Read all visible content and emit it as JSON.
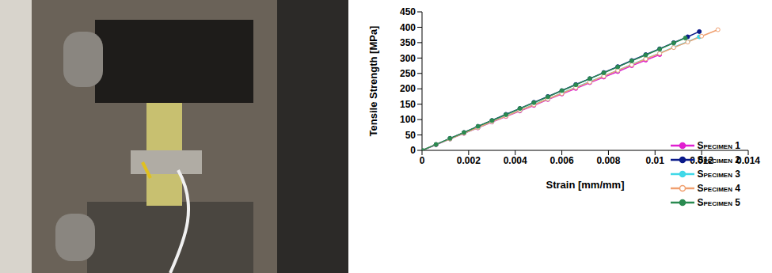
{
  "chart_data": {
    "type": "line",
    "x_label": "Strain [mm/mm]",
    "y_label": "Tensile Strength [MPa]",
    "xlim": [
      0,
      0.014
    ],
    "xticks": [
      0,
      0.002,
      0.004,
      0.006,
      0.008,
      0.01,
      0.012,
      0.014
    ],
    "ylim": [
      0,
      450
    ],
    "yticks": [
      0,
      50,
      100,
      150,
      200,
      250,
      300,
      350,
      400,
      450
    ],
    "grid": false,
    "legend": "lower right",
    "series": [
      {
        "name": "Specimen 1",
        "color": "#e020d0",
        "marker": "circle",
        "line_style": "solid",
        "x": [
          0,
          0.0006,
          0.0012,
          0.0018,
          0.0024,
          0.003,
          0.0036,
          0.0042,
          0.0048,
          0.0054,
          0.006,
          0.0066,
          0.0072,
          0.0078,
          0.0084,
          0.009,
          0.0096,
          0.0102
        ],
        "values": [
          0,
          18,
          37,
          55,
          73,
          92,
          110,
          128,
          146,
          165,
          183,
          201,
          220,
          238,
          256,
          275,
          293,
          311
        ]
      },
      {
        "name": "Specimen 2",
        "color": "#0a1a8a",
        "marker": "circle",
        "line_style": "solid",
        "x": [
          0,
          0.0006,
          0.0012,
          0.0018,
          0.0024,
          0.003,
          0.0036,
          0.0042,
          0.0048,
          0.0054,
          0.006,
          0.0066,
          0.0072,
          0.0078,
          0.0084,
          0.009,
          0.0096,
          0.0102,
          0.0108,
          0.0114,
          0.0119
        ],
        "values": [
          0,
          19,
          39,
          58,
          78,
          97,
          117,
          136,
          156,
          175,
          194,
          214,
          233,
          253,
          272,
          292,
          311,
          330,
          350,
          369,
          386
        ]
      },
      {
        "name": "Specimen 3",
        "color": "#40d8e8",
        "marker": "circle",
        "line_style": "solid",
        "x": [
          0,
          0.0006,
          0.0012,
          0.0018,
          0.0024,
          0.003,
          0.0036,
          0.0042,
          0.0048,
          0.0054,
          0.006,
          0.0066,
          0.0072,
          0.0078,
          0.0084,
          0.009,
          0.0096,
          0.0102,
          0.0108,
          0.0114,
          0.0119
        ],
        "values": [
          0,
          19,
          37,
          56,
          74,
          93,
          112,
          130,
          149,
          167,
          186,
          205,
          223,
          242,
          260,
          279,
          298,
          316,
          335,
          353,
          369
        ]
      },
      {
        "name": "Specimen 4",
        "color": "#f0a070",
        "marker": "open_circle",
        "line_style": "solid",
        "x": [
          0,
          0.0006,
          0.0012,
          0.0018,
          0.0024,
          0.003,
          0.0036,
          0.0042,
          0.0048,
          0.0054,
          0.006,
          0.0066,
          0.0072,
          0.0078,
          0.0084,
          0.009,
          0.0096,
          0.0102,
          0.0108,
          0.0114,
          0.012,
          0.0127
        ],
        "values": [
          0,
          19,
          37,
          56,
          74,
          93,
          111,
          130,
          148,
          167,
          185,
          204,
          222,
          241,
          260,
          278,
          297,
          315,
          334,
          352,
          371,
          392
        ]
      },
      {
        "name": "Specimen 5",
        "color": "#2a8a50",
        "marker": "circle",
        "line_style": "solid",
        "x": [
          0,
          0.0006,
          0.0012,
          0.0018,
          0.0024,
          0.003,
          0.0036,
          0.0042,
          0.0048,
          0.0054,
          0.006,
          0.0066,
          0.0072,
          0.0078,
          0.0084,
          0.009,
          0.0096,
          0.0102,
          0.0108,
          0.0113
        ],
        "values": [
          0,
          19,
          39,
          58,
          78,
          97,
          116,
          136,
          155,
          174,
          194,
          213,
          233,
          252,
          271,
          291,
          310,
          329,
          349,
          365
        ]
      }
    ]
  }
}
